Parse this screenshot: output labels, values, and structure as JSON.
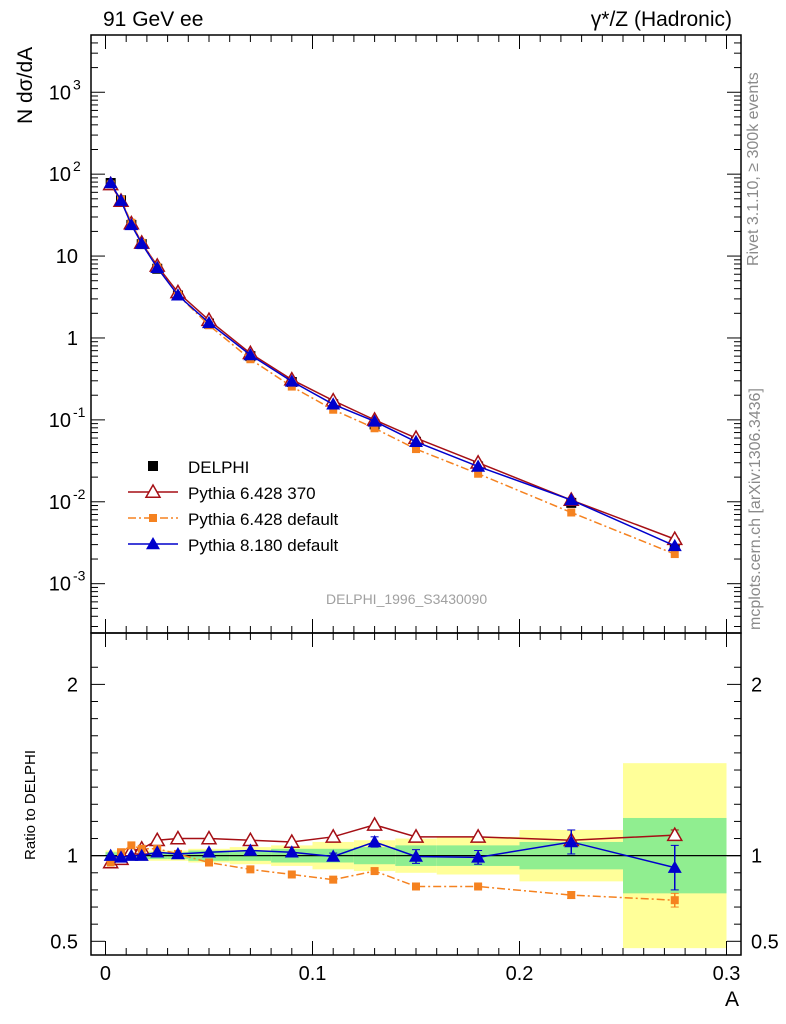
{
  "header": {
    "left_title": "91 GeV ee",
    "right_title": "γ*/Z (Hadronic)"
  },
  "side_labels": {
    "rivet": "Rivet 3.1.10, ≥ 300k events",
    "mcplots": "mcplots.cern.ch [arXiv:1306.3436]"
  },
  "analysis_label": "DELPHI_1996_S3430090",
  "chart_data": [
    {
      "type": "scatter",
      "ylabel": "N dσ/dA",
      "yscale": "log",
      "ylim": [
        0.00025,
        5000
      ],
      "xlim": [
        -0.007,
        0.307
      ],
      "legend_position": "lower-left",
      "x": [
        0.0025,
        0.0075,
        0.0125,
        0.0175,
        0.025,
        0.035,
        0.05,
        0.07,
        0.09,
        0.11,
        0.13,
        0.15,
        0.18,
        0.225,
        0.275
      ],
      "series": [
        {
          "name": "DELPHI",
          "color": "#000000",
          "marker": "square",
          "values": [
            78,
            48,
            24,
            14,
            7.0,
            3.3,
            1.5,
            0.6,
            0.29,
            0.155,
            0.088,
            0.054,
            0.027,
            0.0097,
            0.0031
          ]
        },
        {
          "name": "Pythia 6.428 370",
          "color": "#a50f15",
          "marker": "open-triangle",
          "line": "solid",
          "values": [
            75,
            47,
            25,
            14.5,
            7.6,
            3.6,
            1.65,
            0.65,
            0.31,
            0.172,
            0.1,
            0.06,
            0.03,
            0.0105,
            0.0035
          ]
        },
        {
          "name": "Pythia 6.428 default",
          "color": "#f58220",
          "marker": "filled-square",
          "line": "dashdot",
          "values": [
            75,
            49,
            25.5,
            14.5,
            7.3,
            3.35,
            1.43,
            0.55,
            0.255,
            0.133,
            0.079,
            0.044,
            0.022,
            0.0074,
            0.0023
          ]
        },
        {
          "name": "Pythia 8.180 default",
          "color": "#0000cc",
          "marker": "filled-triangle",
          "line": "solid",
          "values": [
            78,
            47.5,
            24,
            14.2,
            7.2,
            3.32,
            1.53,
            0.62,
            0.295,
            0.155,
            0.096,
            0.054,
            0.027,
            0.0105,
            0.0029
          ]
        }
      ]
    },
    {
      "type": "scatter",
      "ylabel": "Ratio to DELPHI",
      "xlabel": "A",
      "ylim": [
        0.42,
        2.3
      ],
      "xlim": [
        -0.007,
        0.307
      ],
      "x_ticks": [
        "0",
        "0.1",
        "0.2",
        "0.3"
      ],
      "y_ticks": [
        "0.5",
        "1",
        "2"
      ],
      "reference_line": 1,
      "bands": {
        "edges": [
          0,
          0.005,
          0.01,
          0.015,
          0.02,
          0.03,
          0.04,
          0.06,
          0.08,
          0.1,
          0.12,
          0.14,
          0.16,
          0.2,
          0.25,
          0.3
        ],
        "stat": [
          0.02,
          0.02,
          0.02,
          0.02,
          0.02,
          0.02,
          0.03,
          0.03,
          0.04,
          0.04,
          0.05,
          0.06,
          0.06,
          0.08,
          0.22
        ],
        "total": [
          0.03,
          0.03,
          0.03,
          0.03,
          0.03,
          0.03,
          0.04,
          0.05,
          0.06,
          0.08,
          0.09,
          0.1,
          0.11,
          0.15,
          0.54
        ],
        "stat_color": "#90ee90",
        "total_color": "#ffff99"
      },
      "series": [
        {
          "name": "Pythia 6.428 370",
          "color": "#a50f15",
          "values": [
            0.96,
            0.98,
            1.03,
            1.04,
            1.09,
            1.1,
            1.1,
            1.09,
            1.08,
            1.11,
            1.18,
            1.11,
            1.11,
            1.09,
            1.12
          ],
          "errors": [
            0,
            0,
            0,
            0,
            0,
            0,
            0,
            0,
            0,
            0,
            0,
            0,
            0,
            0,
            0.03
          ]
        },
        {
          "name": "Pythia 6.428 default",
          "color": "#f58220",
          "values": [
            0.96,
            1.02,
            1.06,
            1.04,
            1.04,
            1.01,
            0.96,
            0.92,
            0.89,
            0.86,
            0.91,
            0.82,
            0.82,
            0.77,
            0.74
          ],
          "errors": [
            0,
            0,
            0,
            0,
            0,
            0,
            0,
            0,
            0,
            0,
            0,
            0,
            0.01,
            0.02,
            0.04
          ]
        },
        {
          "name": "Pythia 8.180 default",
          "color": "#0000cc",
          "values": [
            1.0,
            0.99,
            1.0,
            1.0,
            1.02,
            1.01,
            1.02,
            1.03,
            1.02,
            0.995,
            1.08,
            0.995,
            0.99,
            1.08,
            0.93
          ],
          "errors": [
            0,
            0,
            0,
            0,
            0,
            0,
            0,
            0,
            0,
            0.02,
            0.03,
            0.04,
            0.04,
            0.07,
            0.13
          ]
        }
      ]
    }
  ]
}
